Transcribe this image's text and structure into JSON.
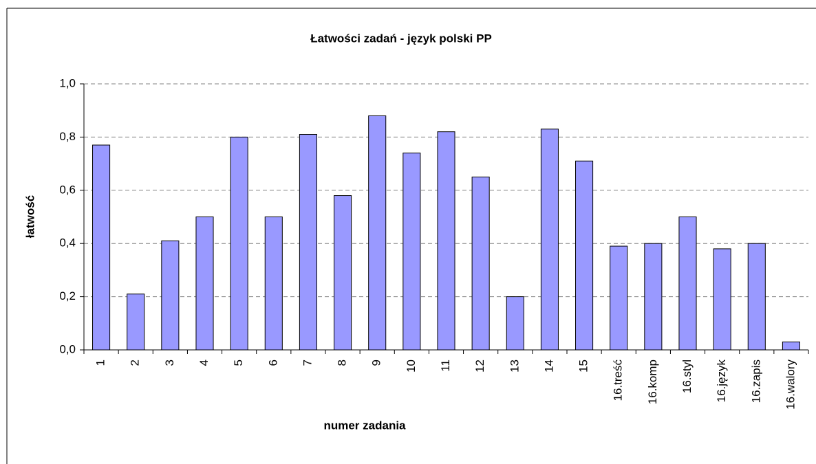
{
  "chart_data": {
    "type": "bar",
    "title": "Łatwości zadań - język polski PP",
    "x_label": "numer zadania",
    "y_label": "łatwość",
    "categories": [
      "1",
      "2",
      "3",
      "4",
      "5",
      "6",
      "7",
      "8",
      "9",
      "10",
      "11",
      "12",
      "13",
      "14",
      "15",
      "16.treść",
      "16.komp",
      "16.styl",
      "16.język",
      "16.zapis",
      "16.walory"
    ],
    "values": [
      0.77,
      0.21,
      0.41,
      0.5,
      0.8,
      0.5,
      0.81,
      0.58,
      0.88,
      0.74,
      0.82,
      0.65,
      0.2,
      0.83,
      0.71,
      0.39,
      0.4,
      0.5,
      0.38,
      0.4,
      0.03
    ],
    "color": "#9999ff",
    "ylim": [
      0,
      1
    ],
    "yticks": [
      {
        "value": 0,
        "label": "0,0"
      },
      {
        "value": 0.2,
        "label": "0,2"
      },
      {
        "value": 0.4,
        "label": "0,4"
      },
      {
        "value": 0.6,
        "label": "0,6"
      },
      {
        "value": 0.8,
        "label": "0,8"
      },
      {
        "value": 1,
        "label": "1,0"
      }
    ],
    "grid": true
  }
}
